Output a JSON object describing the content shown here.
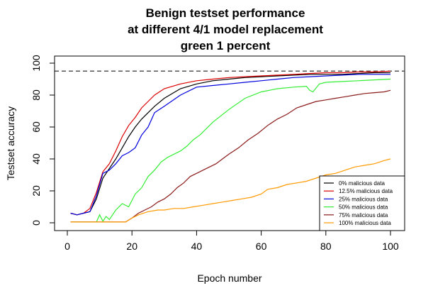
{
  "chart_data": {
    "type": "line",
    "title_lines": [
      "Benign testset performance",
      "at different 4/1 model replacement",
      "green 1 percent"
    ],
    "xlabel": "Epoch number",
    "ylabel": "Testset accuracy",
    "xlim": [
      1,
      100
    ],
    "ylim": [
      0,
      100
    ],
    "xticks": [
      "0",
      "20",
      "40",
      "60",
      "80",
      "100"
    ],
    "yticks": [
      "0",
      "20",
      "40",
      "60",
      "80",
      "100"
    ],
    "reference_line": {
      "y": 95,
      "style": "dashed",
      "color": "#555555"
    },
    "legend_position": "bottom-right",
    "grid": false,
    "series": [
      {
        "name": "0% malicious data",
        "color": "#000000",
        "x": [
          1,
          3,
          5,
          7,
          9,
          11,
          13,
          15,
          17,
          19,
          21,
          23,
          25,
          27,
          30,
          35,
          40,
          45,
          50,
          55,
          60,
          65,
          70,
          75,
          80,
          85,
          90,
          95,
          100
        ],
        "y": [
          6,
          5,
          6,
          7,
          15,
          28,
          34,
          40,
          47,
          54,
          60,
          65,
          69,
          73,
          78,
          84,
          87,
          89,
          90,
          91,
          91.5,
          92,
          92.5,
          93,
          93,
          93,
          93.5,
          94,
          94
        ]
      },
      {
        "name": "12.5% malicious data",
        "color": "#dd0000",
        "x": [
          1,
          3,
          5,
          7,
          9,
          11,
          13,
          15,
          17,
          19,
          21,
          23,
          25,
          27,
          30,
          35,
          40,
          45,
          50,
          55,
          60,
          65,
          70,
          75,
          80,
          85,
          90,
          95,
          100
        ],
        "y": [
          6,
          5,
          6,
          9,
          19,
          32,
          37,
          45,
          54,
          61,
          66,
          72,
          76,
          80,
          84,
          87,
          89,
          90,
          91,
          91.5,
          92,
          92.5,
          93,
          93.5,
          94,
          94,
          94.5,
          94.5,
          95
        ]
      },
      {
        "name": "25% malicious data",
        "color": "#0000dd",
        "x": [
          1,
          3,
          5,
          7,
          9,
          11,
          13,
          15,
          17,
          19,
          21,
          23,
          25,
          27,
          30,
          35,
          40,
          45,
          50,
          55,
          60,
          65,
          70,
          75,
          80,
          85,
          90,
          95,
          100
        ],
        "y": [
          6,
          5,
          6,
          7,
          17,
          31,
          33,
          37,
          42,
          44,
          47,
          55,
          60,
          69,
          73,
          80,
          85,
          86,
          87,
          88,
          89,
          90,
          91,
          91.5,
          92,
          92.5,
          93,
          93,
          93
        ]
      },
      {
        "name": "50% malicious data",
        "color": "#33ee33",
        "x": [
          1,
          5,
          9,
          10,
          11,
          12,
          13,
          14,
          15,
          17,
          19,
          21,
          23,
          25,
          27,
          29,
          31,
          33,
          35,
          37,
          39,
          41,
          45,
          50,
          55,
          60,
          65,
          70,
          74,
          75,
          76,
          78,
          80,
          85,
          90,
          95,
          100
        ],
        "y": [
          0.5,
          0.5,
          0.5,
          5,
          1,
          4,
          2,
          5,
          8,
          12,
          10,
          18,
          22,
          29,
          33,
          38,
          41,
          43,
          45,
          48,
          52,
          55,
          63,
          71,
          78,
          82,
          84,
          85,
          85.5,
          83,
          82,
          87,
          88,
          88.5,
          89,
          89.5,
          90
        ]
      },
      {
        "name": "75% malicious data",
        "color": "#8b1a1a",
        "x": [
          1,
          5,
          10,
          15,
          18,
          20,
          22,
          24,
          26,
          28,
          30,
          32,
          34,
          36,
          38,
          40,
          42,
          44,
          46,
          48,
          50,
          53,
          56,
          59,
          62,
          65,
          68,
          71,
          74,
          77,
          80,
          83,
          86,
          89,
          92,
          95,
          98,
          100
        ],
        "y": [
          0.5,
          0.5,
          0.5,
          0.5,
          0.5,
          3,
          6,
          8,
          10,
          13,
          15,
          18,
          22,
          25,
          29,
          31,
          33,
          35,
          37,
          40,
          43,
          47,
          52,
          56,
          61,
          65,
          68,
          72,
          74,
          76,
          77,
          78,
          79,
          80,
          81,
          81.5,
          82,
          83
        ]
      },
      {
        "name": "100% malicious data",
        "color": "#ff9900",
        "x": [
          1,
          5,
          10,
          15,
          18,
          20,
          22,
          25,
          28,
          30,
          33,
          36,
          39,
          42,
          45,
          48,
          51,
          54,
          57,
          60,
          62,
          65,
          68,
          71,
          74,
          77,
          80,
          83,
          86,
          89,
          92,
          95,
          98,
          100
        ],
        "y": [
          0.5,
          0.5,
          0.5,
          0.5,
          0.5,
          3,
          5,
          7,
          8,
          8,
          9,
          9,
          10,
          11,
          12,
          13,
          14,
          15,
          16,
          18,
          21,
          22,
          24,
          25,
          26,
          28,
          30,
          31,
          33,
          35,
          36,
          37,
          39,
          40
        ]
      }
    ]
  }
}
